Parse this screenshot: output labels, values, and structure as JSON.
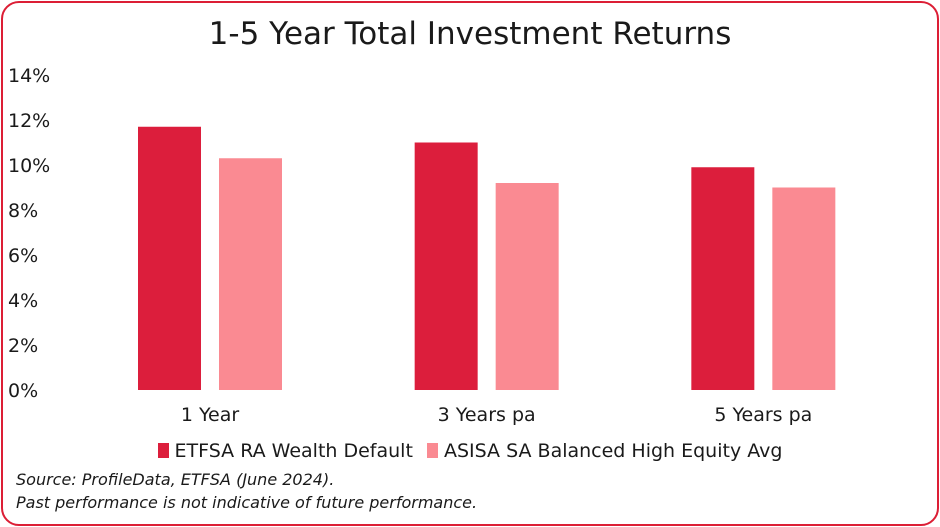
{
  "chart_data": {
    "type": "bar",
    "title": "1-5 Year Total Investment Returns",
    "categories": [
      "1 Year",
      "3 Years pa",
      "5 Years pa"
    ],
    "series": [
      {
        "name": "ETFSA RA Wealth Default",
        "values": [
          11.7,
          11.0,
          9.9
        ],
        "color": "#dc1e3c"
      },
      {
        "name": "ASISA SA Balanced High Equity Avg",
        "values": [
          10.3,
          9.2,
          9.0
        ],
        "color": "#fa8a92"
      }
    ],
    "ylim": [
      0,
      14
    ],
    "yticks": [
      "0%",
      "2%",
      "4%",
      "6%",
      "8%",
      "10%",
      "12%",
      "14%"
    ],
    "ytick_values": [
      0,
      2,
      4,
      6,
      8,
      10,
      12,
      14
    ],
    "grid": false,
    "legend_position": "bottom"
  },
  "footer": {
    "source": "Source: ProfileData, ETFSA (June 2024).",
    "disclaimer": "Past performance is not indicative of future performance."
  },
  "colors": {
    "border": "#dc1e35"
  }
}
